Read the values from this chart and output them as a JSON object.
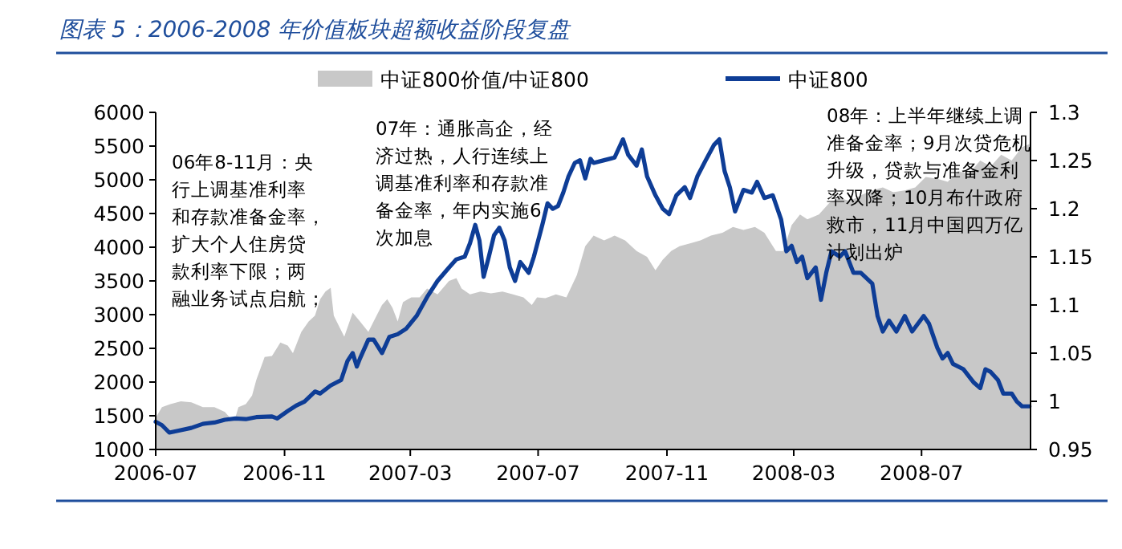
{
  "chart_data": {
    "type": "line",
    "title": "图表 5：2006-2008 年价值板块超额收益阶段复盘",
    "xlim": [
      "2006-07-01",
      "2008-10-13"
    ],
    "xticks": [
      "2006-07",
      "2006-11",
      "2007-03",
      "2007-07",
      "2007-11",
      "2008-03",
      "2008-07"
    ],
    "ylim": [
      1000,
      6000
    ],
    "yticks": [
      1000,
      1500,
      2000,
      2500,
      3000,
      3500,
      4000,
      4500,
      5000,
      5500,
      6000
    ],
    "y2lim": [
      0.95,
      1.3
    ],
    "y2ticks": [
      0.95,
      1,
      1.05,
      1.1,
      1.15,
      1.2,
      1.25,
      1.3
    ],
    "legend": "top",
    "annotations": [
      "06年8-11月：央行上调基准利率和存款准备金率，扩大个人住房贷款利率下限；两融业务试点启航；",
      "07年：通胀高企，经济过热，人行连续上调基准利率和存款准备金率，年内实施6次加息",
      "08年：上半年继续上调准备金率；9月次贷危机升级，贷款与准备金利率双降；10月布什政府救市，11月中国四万亿计划出炉"
    ],
    "series": [
      {
        "name": "中证800价值/中证800",
        "type": "area",
        "axis": "y2",
        "color": "#c8c8c8",
        "x": [
          "2006-07-01",
          "2006-07-07",
          "2006-07-15",
          "2006-07-25",
          "2006-08-04",
          "2006-08-15",
          "2006-08-26",
          "2006-09-05",
          "2006-09-10",
          "2006-09-15",
          "2006-09-18",
          "2006-09-25",
          "2006-10-01",
          "2006-10-05",
          "2006-10-13",
          "2006-10-20",
          "2006-10-28",
          "2006-11-04",
          "2006-11-09",
          "2006-11-17",
          "2006-11-24",
          "2006-11-30",
          "2006-12-05",
          "2006-12-10",
          "2006-12-15",
          "2006-12-18",
          "2006-12-23",
          "2006-12-28",
          "2007-01-05",
          "2007-01-12",
          "2007-01-20",
          "2007-01-25",
          "2007-02-02",
          "2007-02-07",
          "2007-02-12",
          "2007-02-17",
          "2007-02-22",
          "2007-03-02",
          "2007-03-10",
          "2007-03-17",
          "2007-03-27",
          "2007-04-07",
          "2007-04-14",
          "2007-04-19",
          "2007-04-27",
          "2007-05-07",
          "2007-05-17",
          "2007-05-28",
          "2007-06-07",
          "2007-06-17",
          "2007-06-25",
          "2007-06-30",
          "2007-07-08",
          "2007-07-18",
          "2007-07-28",
          "2007-08-07",
          "2007-08-15",
          "2007-08-23",
          "2007-09-02",
          "2007-09-12",
          "2007-09-22",
          "2007-10-03",
          "2007-10-13",
          "2007-10-21",
          "2007-10-28",
          "2007-11-05",
          "2007-11-13",
          "2007-11-23",
          "2007-12-03",
          "2007-12-13",
          "2007-12-24",
          "2008-01-03",
          "2008-01-13",
          "2008-01-24",
          "2008-02-02",
          "2008-02-13",
          "2008-02-20",
          "2008-02-28",
          "2008-03-07",
          "2008-03-14",
          "2008-03-25",
          "2008-04-04",
          "2008-04-14",
          "2008-04-24",
          "2008-05-04",
          "2008-05-15",
          "2008-05-25",
          "2008-06-04",
          "2008-06-15",
          "2008-06-25",
          "2008-07-05",
          "2008-07-16",
          "2008-07-26",
          "2008-08-05",
          "2008-08-15",
          "2008-08-26",
          "2008-09-05",
          "2008-09-15",
          "2008-09-25",
          "2008-10-05",
          "2008-10-12"
        ],
        "values": [
          0.983,
          0.994,
          0.997,
          1.0,
          0.999,
          0.994,
          0.994,
          0.989,
          0.983,
          0.983,
          0.994,
          0.997,
          1.006,
          1.022,
          1.046,
          1.047,
          1.061,
          1.058,
          1.05,
          1.072,
          1.083,
          1.089,
          1.106,
          1.114,
          1.118,
          1.089,
          1.078,
          1.067,
          1.092,
          1.083,
          1.072,
          1.083,
          1.1,
          1.106,
          1.097,
          1.083,
          1.103,
          1.108,
          1.108,
          1.117,
          1.111,
          1.125,
          1.128,
          1.117,
          1.111,
          1.114,
          1.112,
          1.114,
          1.111,
          1.108,
          1.1,
          1.108,
          1.107,
          1.111,
          1.108,
          1.131,
          1.161,
          1.172,
          1.167,
          1.172,
          1.167,
          1.156,
          1.15,
          1.136,
          1.147,
          1.156,
          1.161,
          1.164,
          1.167,
          1.172,
          1.175,
          1.181,
          1.178,
          1.181,
          1.175,
          1.156,
          1.156,
          1.183,
          1.194,
          1.189,
          1.194,
          1.206,
          1.211,
          1.208,
          1.214,
          1.219,
          1.222,
          1.217,
          1.219,
          1.222,
          1.233,
          1.231,
          1.228,
          1.239,
          1.236,
          1.25,
          1.244,
          1.256,
          1.25,
          1.264,
          1.267
        ]
      },
      {
        "name": "中证800",
        "color": "#0e3d96",
        "x": [
          "2006-07-01",
          "2006-07-07",
          "2006-07-14",
          "2006-07-23",
          "2006-08-04",
          "2006-08-15",
          "2006-08-26",
          "2006-09-05",
          "2006-09-15",
          "2006-09-25",
          "2006-10-05",
          "2006-10-20",
          "2006-10-25",
          "2006-11-04",
          "2006-11-12",
          "2006-11-20",
          "2006-11-30",
          "2006-12-05",
          "2006-12-15",
          "2006-12-25",
          "2006-12-31",
          "2007-01-05",
          "2007-01-09",
          "2007-01-12",
          "2007-01-20",
          "2007-01-25",
          "2007-02-02",
          "2007-02-09",
          "2007-02-17",
          "2007-02-25",
          "2007-03-07",
          "2007-03-17",
          "2007-03-27",
          "2007-04-07",
          "2007-04-14",
          "2007-04-22",
          "2007-04-27",
          "2007-05-02",
          "2007-05-06",
          "2007-05-10",
          "2007-05-15",
          "2007-05-20",
          "2007-05-25",
          "2007-05-30",
          "2007-06-04",
          "2007-06-09",
          "2007-06-14",
          "2007-06-22",
          "2007-06-27",
          "2007-07-05",
          "2007-07-10",
          "2007-07-15",
          "2007-07-20",
          "2007-07-25",
          "2007-07-30",
          "2007-08-05",
          "2007-08-10",
          "2007-08-15",
          "2007-08-20",
          "2007-08-23",
          "2007-09-02",
          "2007-09-12",
          "2007-09-20",
          "2007-09-25",
          "2007-10-03",
          "2007-10-08",
          "2007-10-13",
          "2007-10-21",
          "2007-10-28",
          "2007-11-03",
          "2007-11-10",
          "2007-11-18",
          "2007-11-23",
          "2007-11-30",
          "2007-12-08",
          "2007-12-16",
          "2007-12-21",
          "2007-12-26",
          "2007-12-31",
          "2008-01-05",
          "2008-01-13",
          "2008-01-21",
          "2008-01-26",
          "2008-02-02",
          "2008-02-10",
          "2008-02-18",
          "2008-02-23",
          "2008-02-28",
          "2008-03-04",
          "2008-03-09",
          "2008-03-14",
          "2008-03-22",
          "2008-03-27",
          "2008-04-01",
          "2008-04-06",
          "2008-04-14",
          "2008-04-19",
          "2008-04-27",
          "2008-05-04",
          "2008-05-15",
          "2008-05-20",
          "2008-05-25",
          "2008-05-31",
          "2008-06-07",
          "2008-06-15",
          "2008-06-22",
          "2008-07-03",
          "2008-07-08",
          "2008-07-16",
          "2008-07-21",
          "2008-07-26",
          "2008-07-31",
          "2008-08-10",
          "2008-08-20",
          "2008-08-26",
          "2008-08-31",
          "2008-09-05",
          "2008-09-12",
          "2008-09-17",
          "2008-09-25",
          "2008-09-30",
          "2008-10-05",
          "2008-10-12"
        ],
        "values": [
          1410,
          1360,
          1250,
          1280,
          1320,
          1380,
          1400,
          1440,
          1460,
          1450,
          1480,
          1490,
          1460,
          1570,
          1650,
          1710,
          1860,
          1830,
          1950,
          2030,
          2310,
          2430,
          2230,
          2350,
          2630,
          2630,
          2430,
          2670,
          2710,
          2790,
          2980,
          3260,
          3500,
          3700,
          3820,
          3860,
          4060,
          4330,
          4100,
          3560,
          3860,
          4180,
          4290,
          4100,
          3700,
          3500,
          3780,
          3620,
          3860,
          4330,
          4650,
          4570,
          4610,
          4810,
          5050,
          5250,
          5290,
          5020,
          5310,
          5250,
          5290,
          5330,
          5600,
          5370,
          5210,
          5450,
          5050,
          4770,
          4570,
          4490,
          4770,
          4890,
          4730,
          5050,
          5290,
          5520,
          5600,
          5130,
          4890,
          4530,
          4850,
          4810,
          4970,
          4730,
          4770,
          4410,
          3940,
          4020,
          3780,
          3860,
          3540,
          3700,
          3220,
          3620,
          3940,
          3860,
          3940,
          3620,
          3620,
          3460,
          2980,
          2750,
          2910,
          2750,
          2980,
          2750,
          2980,
          2870,
          2510,
          2350,
          2430,
          2270,
          2190,
          1990,
          1910,
          2190,
          2150,
          2030,
          1830,
          1830,
          1710,
          1640,
          1640
        ]
      }
    ]
  }
}
